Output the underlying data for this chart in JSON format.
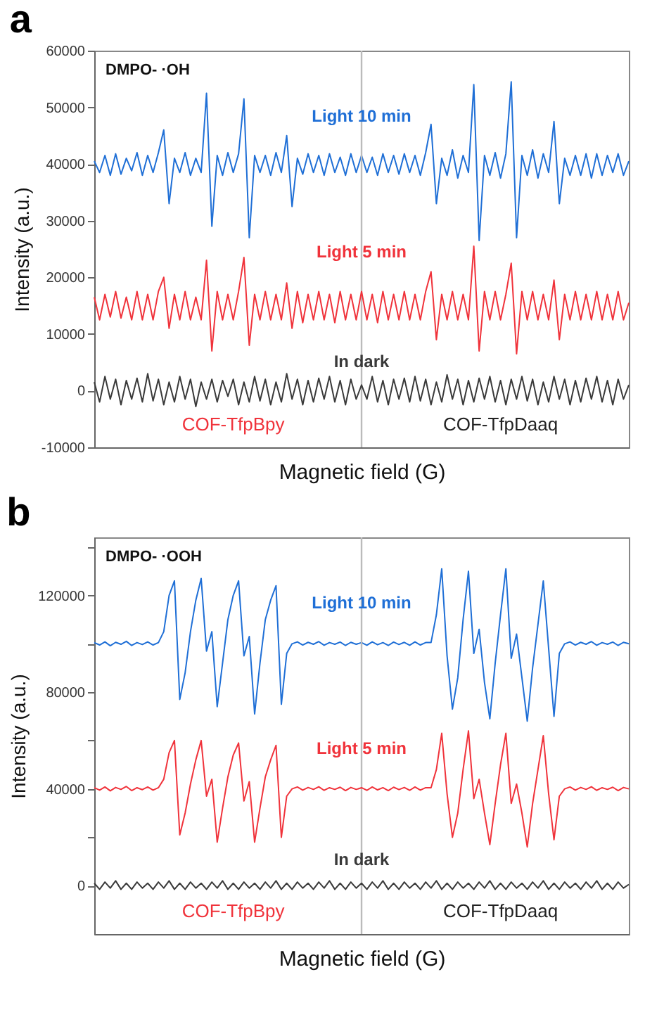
{
  "chart_data": [
    {
      "type": "line",
      "title": "a",
      "xlabel": "Magnetic field (G)",
      "ylabel": "Intensity (a.u.)",
      "annotations": [
        "DMPO- ·OH",
        "COF-TfpBpy",
        "COF-TfpDaaq"
      ],
      "categories": [
        null,
        null,
        null,
        null,
        null,
        null,
        null,
        null,
        null,
        null,
        null,
        null,
        null,
        null,
        null,
        null,
        null,
        null,
        null,
        null,
        null,
        null,
        null,
        null,
        null,
        null,
        null,
        null,
        null,
        null,
        null,
        null,
        null,
        null,
        null,
        null,
        null,
        null,
        null,
        null,
        null,
        null,
        null,
        null,
        null,
        null,
        null,
        null,
        null,
        null,
        null,
        null,
        null,
        null,
        null,
        null,
        null,
        null,
        null,
        null,
        null,
        null,
        null,
        null,
        null,
        null,
        null,
        null,
        null,
        null,
        null,
        null,
        null,
        null,
        null,
        null,
        null,
        null,
        null,
        null,
        null,
        null,
        null,
        null,
        null,
        null,
        null,
        null,
        null,
        null,
        null,
        null,
        null,
        null,
        null,
        null,
        null,
        null,
        null,
        null,
        null
      ],
      "ylim": [
        -10000,
        60000
      ],
      "yticks": [
        -10000,
        0,
        10000,
        20000,
        30000,
        40000,
        50000,
        60000
      ],
      "tick_labels": "y",
      "grid": false,
      "series": [
        {
          "name": "Light 10 min",
          "color": "#1f6fd6",
          "values": [
            40500,
            38500,
            41500,
            38000,
            41800,
            38200,
            41000,
            38800,
            42000,
            38000,
            41500,
            38500,
            42000,
            46000,
            33000,
            41000,
            38500,
            42000,
            38000,
            41000,
            38500,
            52500,
            29000,
            41500,
            38000,
            42000,
            38500,
            41800,
            51500,
            27000,
            41500,
            38500,
            41500,
            38000,
            42000,
            38500,
            45000,
            32500,
            41000,
            38200,
            41800,
            38500,
            41500,
            38000,
            41800,
            38500,
            41200,
            38000,
            41800,
            38500,
            41500,
            38500,
            41200,
            38000,
            41800,
            38500,
            41500,
            38200,
            41800,
            38500,
            41500,
            38000,
            42000,
            47000,
            33000,
            41000,
            38000,
            42500,
            37500,
            41500,
            38500,
            54000,
            26500,
            41500,
            38000,
            42000,
            37500,
            41800,
            54500,
            27000,
            41500,
            38000,
            42500,
            37500,
            41800,
            38500,
            47500,
            33000,
            41000,
            38000,
            41500,
            38000,
            41800,
            37500,
            41800,
            38000,
            41500,
            38500,
            41800,
            38000,
            40500
          ]
        },
        {
          "name": "Light 5 min",
          "color": "#f0333b",
          "values": [
            16500,
            12500,
            17000,
            13000,
            17500,
            12800,
            16500,
            12500,
            17500,
            12500,
            17000,
            12500,
            17500,
            20000,
            11000,
            17000,
            12500,
            17500,
            12500,
            16500,
            12500,
            23000,
            7000,
            17500,
            12500,
            17000,
            12500,
            17500,
            23500,
            8000,
            17000,
            12500,
            17500,
            12500,
            17000,
            12500,
            19000,
            11000,
            17500,
            12000,
            17000,
            12500,
            17500,
            12500,
            17000,
            12000,
            17500,
            12500,
            17000,
            12500,
            17500,
            12500,
            17000,
            12000,
            17500,
            12500,
            17000,
            12500,
            17500,
            12500,
            17000,
            12500,
            17500,
            21000,
            9000,
            17000,
            12500,
            17500,
            12500,
            17000,
            12500,
            25500,
            7000,
            17500,
            12500,
            17500,
            12500,
            17000,
            22500,
            6500,
            17500,
            12500,
            17500,
            12500,
            17000,
            12500,
            19500,
            9000,
            17000,
            12500,
            17500,
            12500,
            17000,
            12500,
            17500,
            12500,
            17000,
            12500,
            17500,
            12500,
            15500
          ]
        },
        {
          "name": "In dark",
          "color": "#3a3a3a",
          "values": [
            1500,
            -2000,
            2500,
            -1500,
            2000,
            -2500,
            1800,
            -1500,
            2200,
            -2000,
            3000,
            -1800,
            2000,
            -2500,
            1500,
            -2000,
            2500,
            -1500,
            2000,
            -2800,
            1500,
            -1500,
            2000,
            -2000,
            1800,
            -1000,
            2000,
            -2500,
            1500,
            -2000,
            2500,
            -1800,
            2000,
            -2500,
            1500,
            -2000,
            3000,
            -1500,
            2000,
            -2500,
            1800,
            -2000,
            2200,
            -1500,
            2500,
            -2000,
            1800,
            -2500,
            2000,
            -1500,
            1000,
            -1500,
            2500,
            -2000,
            1800,
            -2500,
            2000,
            -1500,
            2200,
            -2000,
            2500,
            -1800,
            2000,
            -2500,
            1500,
            -2000,
            2800,
            -1500,
            2000,
            -2500,
            1800,
            -2000,
            2200,
            -1500,
            2500,
            -2000,
            1800,
            -2500,
            2000,
            -1500,
            2500,
            -1800,
            2000,
            -2500,
            1500,
            -2000,
            2500,
            -1500,
            2000,
            -2500,
            1800,
            -2000,
            2200,
            -1500,
            2500,
            -2000,
            1800,
            -2500,
            2000,
            -1500,
            1000
          ]
        }
      ]
    },
    {
      "type": "line",
      "title": "b",
      "xlabel": "Magnetic field (G)",
      "ylabel": "Intensity (a.u.)",
      "annotations": [
        "DMPO- ·OOH",
        "COF-TfpBpy",
        "COF-TfpDaaq"
      ],
      "categories": [
        null,
        null,
        null,
        null,
        null,
        null,
        null,
        null,
        null,
        null,
        null,
        null,
        null,
        null,
        null,
        null,
        null,
        null,
        null,
        null,
        null,
        null,
        null,
        null,
        null,
        null,
        null,
        null,
        null,
        null,
        null,
        null,
        null,
        null,
        null,
        null,
        null,
        null,
        null,
        null,
        null,
        null,
        null,
        null,
        null,
        null,
        null,
        null,
        null,
        null,
        null,
        null,
        null,
        null,
        null,
        null,
        null,
        null,
        null,
        null,
        null,
        null,
        null,
        null,
        null,
        null,
        null,
        null,
        null,
        null,
        null,
        null,
        null,
        null,
        null,
        null,
        null,
        null,
        null,
        null,
        null,
        null,
        null,
        null,
        null,
        null,
        null,
        null,
        null,
        null,
        null,
        null,
        null,
        null,
        null,
        null,
        null,
        null,
        null,
        null,
        null
      ],
      "ylim": [
        -20000,
        144000
      ],
      "yticks": [
        0,
        {
          "value": 20000,
          "label": null
        },
        40000,
        {
          "value": 60000,
          "label": null
        },
        80000,
        {
          "value": 100000,
          "label": null
        },
        120000,
        {
          "value": 140000,
          "label": null
        }
      ],
      "tick_labels": "y",
      "grid": false,
      "series": [
        {
          "name": "Light 10 min",
          "color": "#1f6fd6",
          "values": [
            100500,
            99500,
            100800,
            99200,
            100600,
            99800,
            101000,
            99300,
            100500,
            99700,
            100800,
            99500,
            100500,
            105000,
            120000,
            126000,
            77000,
            88000,
            105000,
            118000,
            127000,
            97000,
            105000,
            74000,
            92000,
            110000,
            120000,
            126000,
            95000,
            103000,
            71000,
            92000,
            110000,
            118000,
            124000,
            75000,
            96000,
            100000,
            100800,
            99500,
            100600,
            99800,
            100900,
            99400,
            100500,
            99800,
            100700,
            99300,
            100600,
            99800,
            100500,
            99400,
            100800,
            99600,
            100500,
            99300,
            100700,
            99700,
            100600,
            99400,
            100800,
            99500,
            100500,
            100500,
            112000,
            131000,
            95000,
            73000,
            86000,
            110000,
            130000,
            96000,
            106000,
            84000,
            69000,
            92000,
            112000,
            131000,
            94000,
            104000,
            86000,
            68000,
            90000,
            108000,
            126000,
            98000,
            70000,
            96000,
            100000,
            100800,
            99500,
            100600,
            99800,
            100900,
            99400,
            100500,
            99800,
            100700,
            99300,
            100600,
            100000
          ]
        },
        {
          "name": "Light 5 min",
          "color": "#f0333b",
          "values": [
            40500,
            39500,
            40800,
            39200,
            40600,
            39800,
            41000,
            39300,
            40500,
            39700,
            40800,
            39500,
            40500,
            44000,
            55000,
            60000,
            21000,
            30000,
            42000,
            52000,
            60000,
            37000,
            44000,
            18000,
            32000,
            45000,
            54000,
            59000,
            35000,
            43000,
            18000,
            32000,
            45000,
            52000,
            58000,
            20000,
            37000,
            40000,
            40800,
            39500,
            40600,
            39800,
            40900,
            39400,
            40500,
            39800,
            40700,
            39300,
            40600,
            39800,
            40500,
            39400,
            40800,
            39600,
            40500,
            39300,
            40700,
            39700,
            40600,
            39400,
            40800,
            39500,
            40500,
            40500,
            48000,
            63000,
            38000,
            20000,
            30000,
            48000,
            64000,
            36000,
            44000,
            30000,
            17000,
            34000,
            50000,
            63000,
            34000,
            42000,
            30000,
            16000,
            34000,
            48000,
            62000,
            38000,
            19000,
            37000,
            40000,
            40800,
            39500,
            40600,
            39800,
            40900,
            39400,
            40500,
            39800,
            40700,
            39300,
            40600,
            40000
          ]
        },
        {
          "name": "In dark",
          "color": "#3a3a3a",
          "values": [
            1000,
            -1500,
            1500,
            -1000,
            2000,
            -1500,
            1000,
            -1500,
            1500,
            -1000,
            1000,
            -1500,
            1500,
            -1000,
            2000,
            -1500,
            1000,
            -1500,
            1500,
            -1000,
            1000,
            -1500,
            1500,
            -1000,
            2000,
            -1500,
            1000,
            -1500,
            1500,
            -1000,
            1000,
            -1500,
            1500,
            -1000,
            2000,
            -1500,
            1000,
            -1500,
            1500,
            -1000,
            1000,
            -1500,
            1500,
            -1000,
            2000,
            -1500,
            1000,
            -1500,
            1500,
            -1000,
            1000,
            -1500,
            1500,
            -1000,
            2000,
            -1500,
            1000,
            -1500,
            1500,
            -1000,
            1000,
            -1500,
            1500,
            -1000,
            2000,
            -1500,
            1000,
            -1500,
            1500,
            -1000,
            1000,
            -1500,
            1500,
            -1000,
            2000,
            -1500,
            1000,
            -1500,
            1500,
            -1000,
            1000,
            -1500,
            1500,
            -1000,
            2000,
            -1500,
            1000,
            -1500,
            1500,
            -1000,
            1000,
            -1500,
            1500,
            -1000,
            2000,
            -1500,
            1000,
            -1500,
            1500,
            -1000,
            500
          ]
        }
      ]
    }
  ]
}
